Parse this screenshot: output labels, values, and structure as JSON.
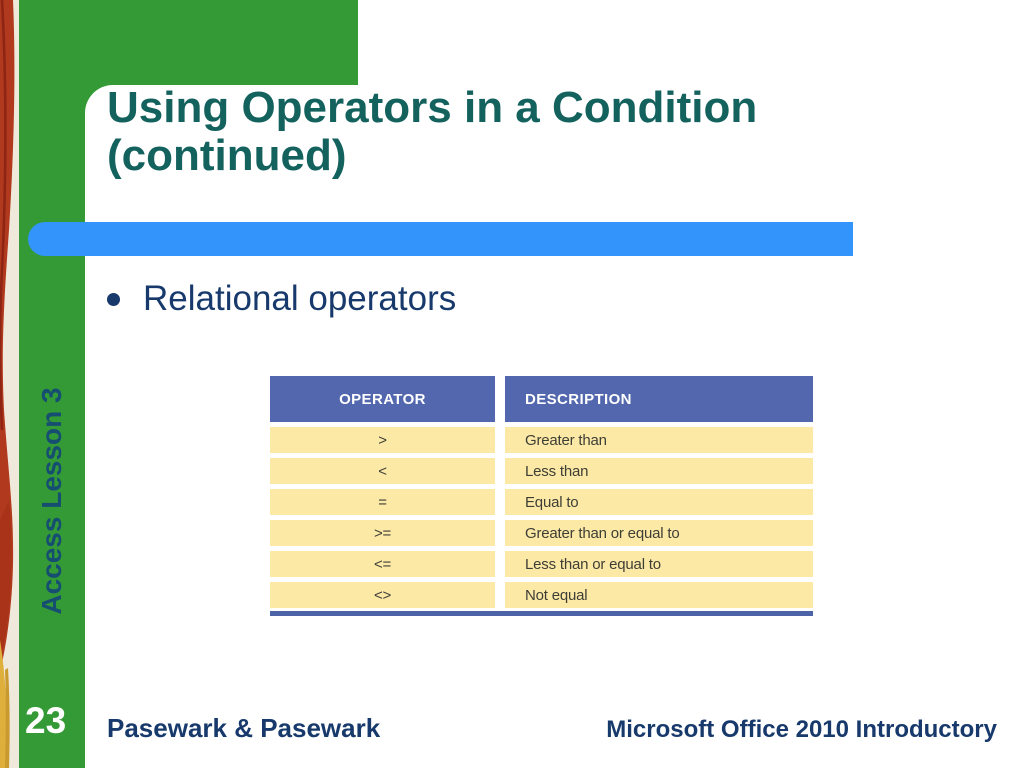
{
  "slide": {
    "title": "Using Operators in a Condition (continued)",
    "bullet": "Relational operators",
    "sidebar_label": "Access Lesson 3",
    "slide_number": "23",
    "footer_left": "Pasewark & Pasewark",
    "footer_right": "Microsoft Office 2010 Introductory"
  },
  "table": {
    "columns": [
      "OPERATOR",
      "DESCRIPTION"
    ],
    "rows": [
      {
        "operator": ">",
        "description": "Greater than"
      },
      {
        "operator": "<",
        "description": "Less than"
      },
      {
        "operator": "=",
        "description": "Equal to"
      },
      {
        "operator": ">=",
        "description": "Greater than or equal to"
      },
      {
        "operator": "<=",
        "description": "Less than or equal to"
      },
      {
        "operator": "<>",
        "description": "Not equal"
      }
    ]
  },
  "colors": {
    "green": "#349A35",
    "accent_blue_bar": "#3395FB",
    "title_teal": "#14625E",
    "body_navy": "#17396B",
    "table_header_blue": "#5267AD",
    "table_row_yellow": "#FCE9A6",
    "table_border_blue": "#4C63A8",
    "sidebar_label_color": "#164E72"
  }
}
